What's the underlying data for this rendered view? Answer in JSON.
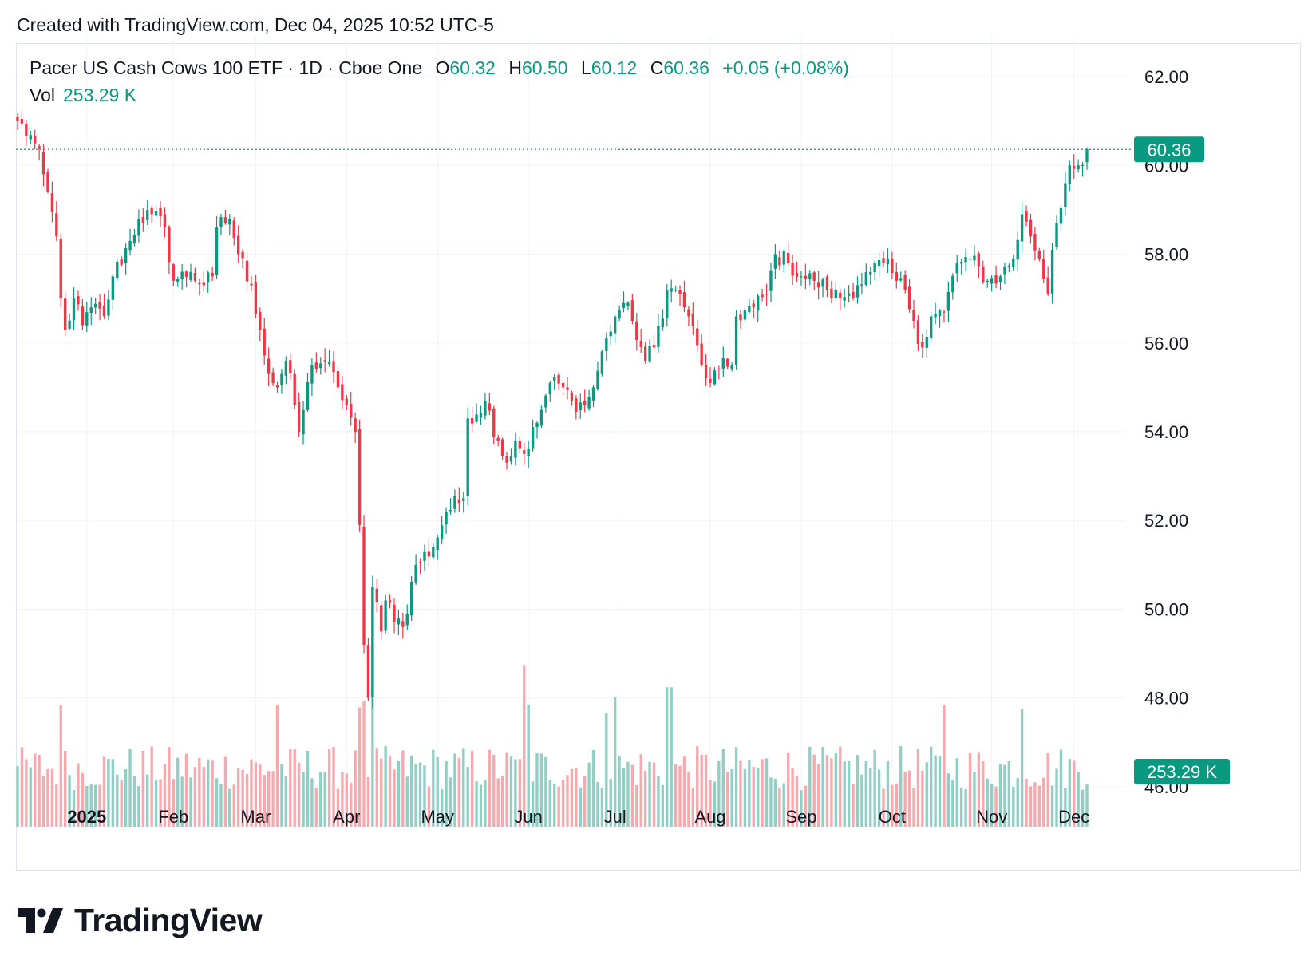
{
  "header": {
    "created_text": "Created with TradingView.com, Dec 04, 2025 10:52 UTC-5"
  },
  "legend": {
    "symbol": "Pacer US Cash Cows 100 ETF · 1D · Cboe One",
    "o_label": "O",
    "o_value": "60.32",
    "h_label": "H",
    "h_value": "60.50",
    "l_label": "L",
    "l_value": "60.12",
    "c_label": "C",
    "c_value": "60.36",
    "change": "+0.05 (+0.08%)",
    "vol_label": "Vol",
    "vol_value": "253.29 K"
  },
  "colors": {
    "up": "#089981",
    "down": "#f23645",
    "up_vol": "#8fcfc4",
    "down_vol": "#f8a9ae",
    "grid": "#f0f3fa",
    "last_price_tag": "#089981"
  },
  "price_tag": "60.36",
  "volume_tag": "253.29 K",
  "footer": {
    "brand": "TradingView",
    "logo_icon": "tradingview-logo-icon"
  },
  "chart_data": {
    "type": "candlestick",
    "title": "Pacer US Cash Cows 100 ETF · 1D · Cboe One",
    "y_ticks": [
      "62.00",
      "60.00",
      "58.00",
      "56.00",
      "54.00",
      "52.00",
      "50.00",
      "48.00",
      "46.00"
    ],
    "y_range": [
      45.1,
      62.9
    ],
    "x_labels": [
      "2025",
      "Feb",
      "Mar",
      "Apr",
      "May",
      "Jun",
      "Jul",
      "Aug",
      "Sep",
      "Oct",
      "Nov",
      "Dec"
    ],
    "x_label_dates": [
      "2025-01-02",
      "2025-02-03",
      "2025-03-03",
      "2025-04-01",
      "2025-05-01",
      "2025-06-02",
      "2025-07-01",
      "2025-08-01",
      "2025-09-02",
      "2025-10-01",
      "2025-11-03",
      "2025-12-01"
    ],
    "date_range": [
      "2024-12-09",
      "2025-12-04"
    ],
    "last_price": 60.36,
    "grid": true,
    "close_keyframes": [
      [
        "2024-12-09",
        61.0
      ],
      [
        "2024-12-13",
        60.5
      ],
      [
        "2024-12-17",
        59.8
      ],
      [
        "2024-12-20",
        58.4
      ],
      [
        "2024-12-23",
        57.0
      ],
      [
        "2024-12-24",
        56.3
      ],
      [
        "2024-12-27",
        57.0
      ],
      [
        "2024-12-31",
        56.4
      ],
      [
        "2025-01-03",
        56.8
      ],
      [
        "2025-01-08",
        56.6
      ],
      [
        "2025-01-13",
        57.5
      ],
      [
        "2025-01-17",
        58.3
      ],
      [
        "2025-01-22",
        58.8
      ],
      [
        "2025-01-27",
        58.9
      ],
      [
        "2025-01-30",
        58.6
      ],
      [
        "2025-02-03",
        57.4
      ],
      [
        "2025-02-07",
        57.6
      ],
      [
        "2025-02-12",
        57.3
      ],
      [
        "2025-02-14",
        57.5
      ],
      [
        "2025-02-18",
        58.6
      ],
      [
        "2025-02-21",
        58.8
      ],
      [
        "2025-02-25",
        58.0
      ],
      [
        "2025-02-28",
        57.3
      ],
      [
        "2025-03-04",
        56.3
      ],
      [
        "2025-03-06",
        55.3
      ],
      [
        "2025-03-10",
        55.0
      ],
      [
        "2025-03-12",
        55.6
      ],
      [
        "2025-03-14",
        54.6
      ],
      [
        "2025-03-17",
        54.0
      ],
      [
        "2025-03-20",
        55.5
      ],
      [
        "2025-03-25",
        55.6
      ],
      [
        "2025-03-28",
        55.0
      ],
      [
        "2025-04-01",
        54.6
      ],
      [
        "2025-04-03",
        54.0
      ],
      [
        "2025-04-04",
        51.9
      ],
      [
        "2025-04-07",
        49.2
      ],
      [
        "2025-04-08",
        48.0
      ],
      [
        "2025-04-09",
        50.5
      ],
      [
        "2025-04-11",
        49.5
      ],
      [
        "2025-04-14",
        50.2
      ],
      [
        "2025-04-21",
        49.6
      ],
      [
        "2025-04-24",
        51.0
      ],
      [
        "2025-04-30",
        51.4
      ],
      [
        "2025-05-05",
        52.2
      ],
      [
        "2025-05-09",
        52.5
      ],
      [
        "2025-05-12",
        54.3
      ],
      [
        "2025-05-16",
        54.7
      ],
      [
        "2025-05-21",
        53.8
      ],
      [
        "2025-05-23",
        53.3
      ],
      [
        "2025-05-28",
        53.8
      ],
      [
        "2025-05-30",
        53.5
      ],
      [
        "2025-06-04",
        54.2
      ],
      [
        "2025-06-09",
        55.1
      ],
      [
        "2025-06-12",
        55.0
      ],
      [
        "2025-06-16",
        54.7
      ],
      [
        "2025-06-20",
        54.6
      ],
      [
        "2025-06-24",
        55.0
      ],
      [
        "2025-06-27",
        56.1
      ],
      [
        "2025-07-01",
        56.6
      ],
      [
        "2025-07-03",
        56.9
      ],
      [
        "2025-07-08",
        56.5
      ],
      [
        "2025-07-11",
        55.6
      ],
      [
        "2025-07-15",
        55.9
      ],
      [
        "2025-07-18",
        57.2
      ],
      [
        "2025-07-23",
        57.1
      ],
      [
        "2025-07-25",
        56.6
      ],
      [
        "2025-07-30",
        55.5
      ],
      [
        "2025-08-01",
        55.1
      ],
      [
        "2025-08-05",
        55.4
      ],
      [
        "2025-08-08",
        55.5
      ],
      [
        "2025-08-11",
        56.6
      ],
      [
        "2025-08-15",
        56.8
      ],
      [
        "2025-08-20",
        57.1
      ],
      [
        "2025-08-22",
        58.0
      ],
      [
        "2025-08-27",
        57.8
      ],
      [
        "2025-09-02",
        57.5
      ],
      [
        "2025-09-05",
        57.4
      ],
      [
        "2025-09-10",
        57.2
      ],
      [
        "2025-09-15",
        57.0
      ],
      [
        "2025-09-19",
        57.3
      ],
      [
        "2025-09-24",
        57.6
      ],
      [
        "2025-09-29",
        57.8
      ],
      [
        "2025-10-02",
        57.4
      ],
      [
        "2025-10-06",
        57.2
      ],
      [
        "2025-10-08",
        56.5
      ],
      [
        "2025-10-10",
        55.9
      ],
      [
        "2025-10-14",
        56.6
      ],
      [
        "2025-10-17",
        56.7
      ],
      [
        "2025-10-22",
        57.8
      ],
      [
        "2025-10-27",
        57.9
      ],
      [
        "2025-10-31",
        57.4
      ],
      [
        "2025-11-05",
        57.5
      ],
      [
        "2025-11-10",
        57.9
      ],
      [
        "2025-11-12",
        58.9
      ],
      [
        "2025-11-14",
        58.4
      ],
      [
        "2025-11-18",
        57.9
      ],
      [
        "2025-11-20",
        57.1
      ],
      [
        "2025-11-21",
        58.1
      ],
      [
        "2025-11-24",
        58.7
      ],
      [
        "2025-11-26",
        59.6
      ],
      [
        "2025-11-28",
        60.0
      ],
      [
        "2025-12-02",
        60.0
      ],
      [
        "2025-12-04",
        60.36
      ]
    ],
    "volume_scale_max_k": 750,
    "volume_spikes_k": [
      [
        "2024-12-23",
        600
      ],
      [
        "2025-03-10",
        600
      ],
      [
        "2025-04-04",
        590
      ],
      [
        "2025-04-07",
        620
      ],
      [
        "2025-04-09",
        680
      ],
      [
        "2025-05-30",
        800
      ],
      [
        "2025-06-02",
        600
      ],
      [
        "2025-06-27",
        560
      ],
      [
        "2025-07-01",
        640
      ],
      [
        "2025-07-18",
        690
      ],
      [
        "2025-07-21",
        690
      ],
      [
        "2025-10-17",
        600
      ],
      [
        "2025-11-12",
        580
      ]
    ]
  }
}
